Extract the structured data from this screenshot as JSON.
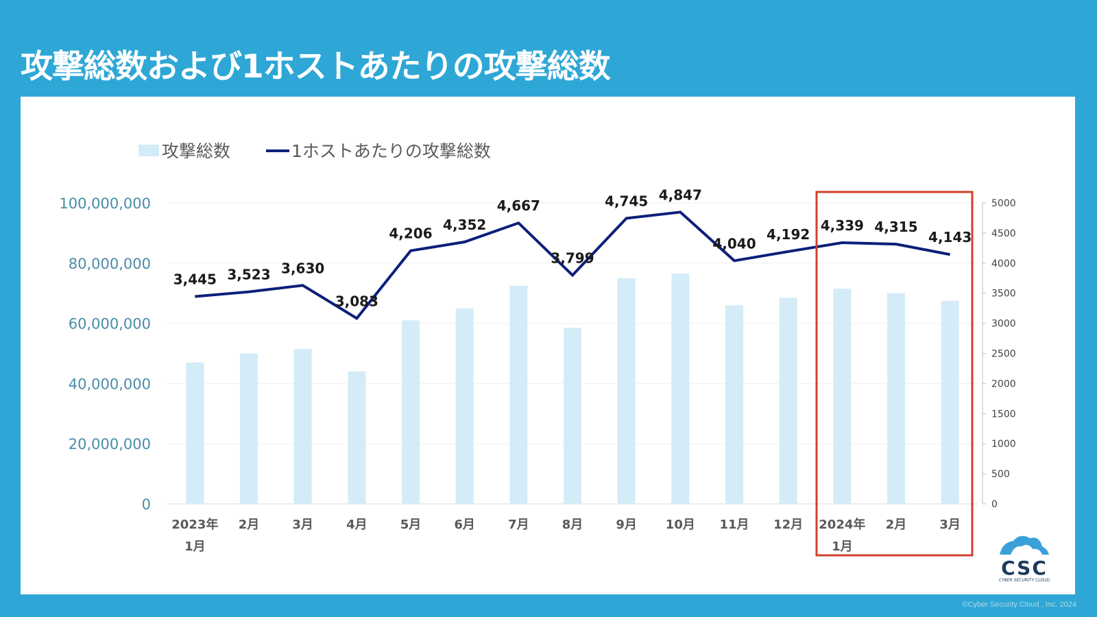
{
  "header": {
    "title": "攻撃総数および1ホストあたりの攻撃総数"
  },
  "footer": {
    "copyright": "©Cyber Security Cloud , Inc. 2024",
    "logo_text": "CSC",
    "logo_subtext": "CYBER SECURITY CLOUD"
  },
  "colors": {
    "background": "#2ea7d6",
    "bar": "#d4ecf7",
    "line": "#0d1f7a",
    "left_axis_text": "#4a8ca8",
    "highlight_box": "#d0402a"
  },
  "chart_data": {
    "type": "bar+line",
    "title": "攻撃総数および1ホストあたりの攻撃総数",
    "categories": [
      [
        "2023年",
        "1月"
      ],
      [
        "2月"
      ],
      [
        "3月"
      ],
      [
        "4月"
      ],
      [
        "5月"
      ],
      [
        "6月"
      ],
      [
        "7月"
      ],
      [
        "8月"
      ],
      [
        "9月"
      ],
      [
        "10月"
      ],
      [
        "11月"
      ],
      [
        "12月"
      ],
      [
        "2024年",
        "1月"
      ],
      [
        "2月"
      ],
      [
        "3月"
      ]
    ],
    "series": [
      {
        "name": "攻撃総数",
        "type": "bar",
        "axis": "left",
        "values": [
          47000000,
          50000000,
          51500000,
          44000000,
          61000000,
          65000000,
          72500000,
          58500000,
          75000000,
          76500000,
          66000000,
          68500000,
          71500000,
          70000000,
          67500000
        ]
      },
      {
        "name": "1ホストあたりの攻撃総数",
        "type": "line",
        "axis": "right",
        "values": [
          3445,
          3523,
          3630,
          3083,
          4206,
          4352,
          4667,
          3799,
          4745,
          4847,
          4040,
          4192,
          4339,
          4315,
          4143
        ],
        "labels": [
          "3,445",
          "3,523",
          "3,630",
          "3,083",
          "4,206",
          "4,352",
          "4,667",
          "3,799",
          "4,745",
          "4,847",
          "4,040",
          "4,192",
          "4,339",
          "4,315",
          "4,143"
        ]
      }
    ],
    "left_axis": {
      "ylim": [
        0,
        100000000
      ],
      "ticks": [
        0,
        20000000,
        40000000,
        60000000,
        80000000,
        100000000
      ],
      "tick_labels": [
        "0",
        "20,000,000",
        "40,000,000",
        "60,000,000",
        "80,000,000",
        "100,000,000"
      ]
    },
    "right_axis": {
      "ylim": [
        0,
        5000
      ],
      "ticks": [
        0,
        500,
        1000,
        1500,
        2000,
        2500,
        3000,
        3500,
        4000,
        4500,
        5000
      ],
      "tick_labels": [
        "0",
        "500",
        "1000",
        "1500",
        "2000",
        "2500",
        "3000",
        "3500",
        "4000",
        "4500",
        "5000"
      ]
    },
    "legend": {
      "position": "top-left",
      "entries": [
        "攻撃総数",
        "1ホストあたりの攻撃総数"
      ]
    },
    "highlight": {
      "from_index": 12,
      "to_index": 14
    },
    "grid": true
  }
}
